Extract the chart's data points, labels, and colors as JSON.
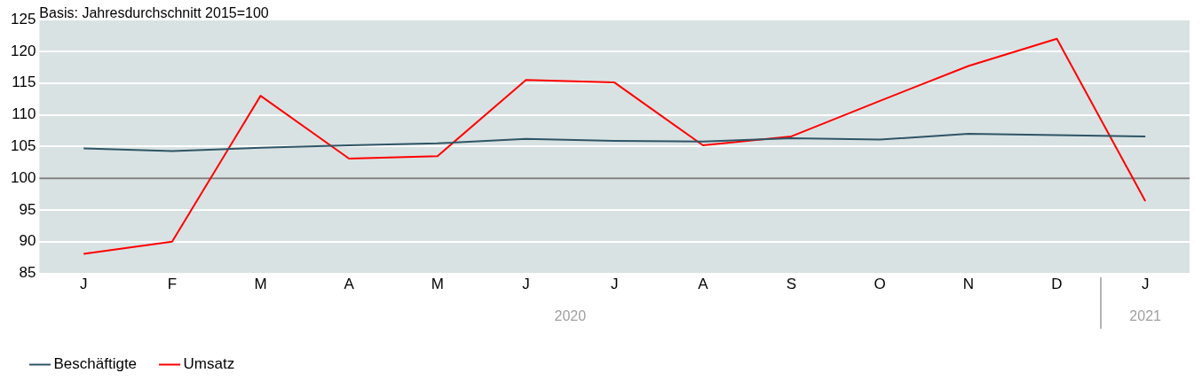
{
  "chart_data": {
    "type": "line",
    "title": "Basis: Jahresdurchschnitt 2015=100",
    "categories": [
      "J",
      "F",
      "M",
      "A",
      "M",
      "J",
      "J",
      "A",
      "S",
      "O",
      "N",
      "D",
      "J"
    ],
    "series": [
      {
        "name": "Beschäftigte",
        "color": "#2e5566",
        "values": [
          104.7,
          104.3,
          104.8,
          105.2,
          105.5,
          106.2,
          105.9,
          105.8,
          106.3,
          106.1,
          107.0,
          106.8,
          106.6
        ]
      },
      {
        "name": "Umsatz",
        "color": "#ff0000",
        "values": [
          88.1,
          90.0,
          113.0,
          103.1,
          103.5,
          115.5,
          115.1,
          105.2,
          106.6,
          112.2,
          117.7,
          122.0,
          96.4
        ]
      }
    ],
    "ylim": [
      85,
      125
    ],
    "yticks": [
      85,
      90,
      95,
      100,
      105,
      110,
      115,
      120,
      125
    ],
    "grid": "y",
    "legend": "bottom left",
    "marker": "none",
    "line_style": "solid",
    "ref_lines": [
      {
        "axis": "y",
        "value": 100,
        "color": "#808080"
      }
    ],
    "annotations": [
      "2020",
      "2021"
    ]
  }
}
